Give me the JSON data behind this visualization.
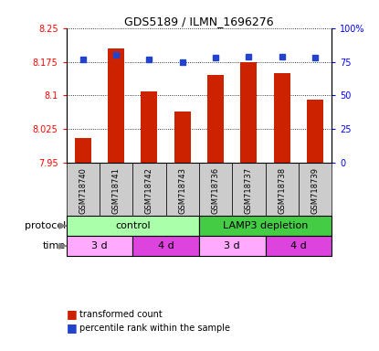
{
  "title": "GDS5189 / ILMN_1696276",
  "samples": [
    "GSM718740",
    "GSM718741",
    "GSM718742",
    "GSM718743",
    "GSM718736",
    "GSM718737",
    "GSM718738",
    "GSM718739"
  ],
  "red_values": [
    8.005,
    8.205,
    8.11,
    8.065,
    8.145,
    8.175,
    8.15,
    8.09
  ],
  "blue_values": [
    77,
    80,
    77,
    75,
    78,
    79,
    79,
    78
  ],
  "ylim_left": [
    7.95,
    8.25
  ],
  "ylim_right": [
    0,
    100
  ],
  "yticks_left": [
    7.95,
    8.025,
    8.1,
    8.175,
    8.25
  ],
  "yticks_right": [
    0,
    25,
    50,
    75,
    100
  ],
  "ytick_labels_left": [
    "7.95",
    "8.025",
    "8.1",
    "8.175",
    "8.25"
  ],
  "ytick_labels_right": [
    "0",
    "25",
    "50",
    "75",
    "100%"
  ],
  "bar_color": "#cc2200",
  "dot_color": "#2244cc",
  "base_value": 7.95,
  "color_control": "#aaffaa",
  "color_lamp3": "#44cc44",
  "color_time_3d": "#ffaaff",
  "color_time_4d": "#dd44dd",
  "label_red": "transformed count",
  "label_blue": "percentile rank within the sample",
  "sample_bg": "#cccccc"
}
